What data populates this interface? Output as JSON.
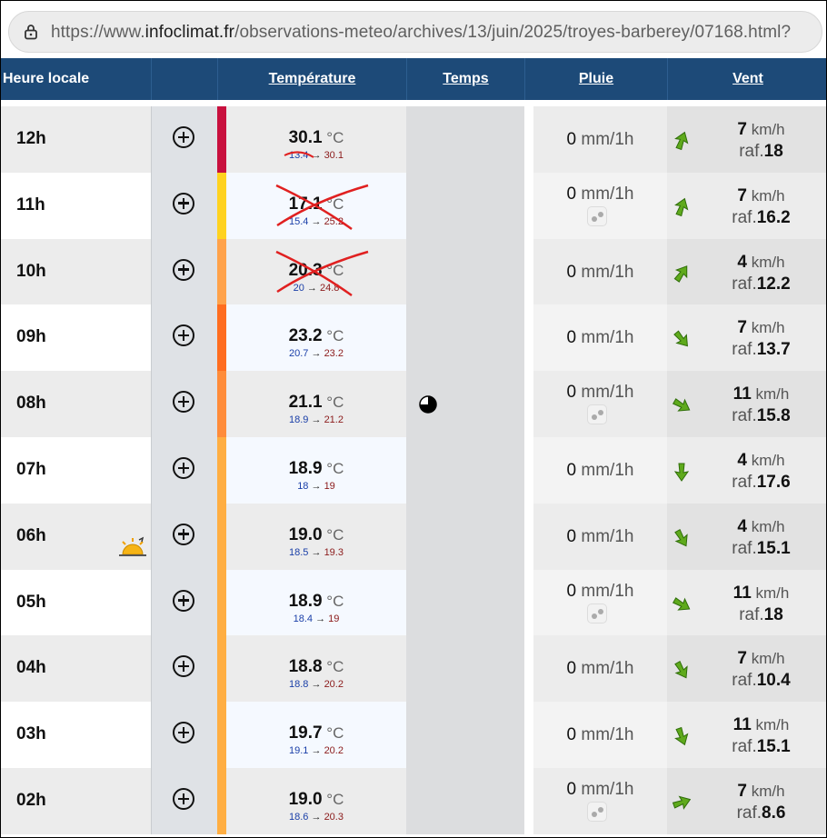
{
  "browser": {
    "url_prefix": "https://www.",
    "url_domain": "infoclimat.fr",
    "url_path": "/observations-meteo/archives/13/juin/2025/troyes-barberey/07168.html?"
  },
  "table_header": {
    "hour": "Heure locale",
    "temperature": "Température",
    "weather": "Temps",
    "rain": "Pluie",
    "wind": "Vent"
  },
  "units": {
    "temp": "°C",
    "rain": "mm/1h",
    "wind": "km/h",
    "gust_prefix": "raf."
  },
  "rows": [
    {
      "hour": "12h",
      "temp": "30.1",
      "tmin": "13.4",
      "tmax": "30.1",
      "rain": "0",
      "rain_icon": false,
      "wind": "7",
      "gust": "18",
      "bar_color": "#c8103e",
      "bg": "#ececec",
      "temp_bg": "#ececec",
      "rain_bg": "#ececec",
      "wind_bg": "#e2e2e2",
      "wind_dir_deg": 200,
      "crossed": "strike"
    },
    {
      "hour": "11h",
      "temp": "17.1",
      "tmin": "15.4",
      "tmax": "25.2",
      "rain": "0",
      "rain_icon": true,
      "wind": "7",
      "gust": "16.2",
      "bar_color": "#ffd21f",
      "bg": "#ffffff",
      "temp_bg": "#f5f9ff",
      "rain_bg": "#f3f3f3",
      "wind_bg": "#ececec",
      "wind_dir_deg": 200,
      "crossed": "x"
    },
    {
      "hour": "10h",
      "temp": "20.3",
      "tmin": "20",
      "tmax": "24.8",
      "rain": "0",
      "rain_icon": false,
      "wind": "4",
      "gust": "12.2",
      "bar_color": "#ffa24a",
      "bg": "#ececec",
      "temp_bg": "#ececec",
      "rain_bg": "#ececec",
      "wind_bg": "#e2e2e2",
      "wind_dir_deg": 215,
      "crossed": "x"
    },
    {
      "hour": "09h",
      "temp": "23.2",
      "tmin": "20.7",
      "tmax": "23.2",
      "rain": "0",
      "rain_icon": false,
      "wind": "7",
      "gust": "13.7",
      "bar_color": "#ff6d1f",
      "bg": "#ffffff",
      "temp_bg": "#f5f9ff",
      "rain_bg": "#f3f3f3",
      "wind_bg": "#ececec",
      "wind_dir_deg": 320,
      "crossed": ""
    },
    {
      "hour": "08h",
      "temp": "21.1",
      "tmin": "18.9",
      "tmax": "21.2",
      "rain": "0",
      "rain_icon": true,
      "wind": "11",
      "gust": "15.8",
      "bar_color": "#ff8c3a",
      "bg": "#ececec",
      "temp_bg": "#ececec",
      "rain_bg": "#ececec",
      "wind_bg": "#e2e2e2",
      "wind_dir_deg": 300,
      "crossed": "",
      "weather_icon": true
    },
    {
      "hour": "07h",
      "temp": "18.9",
      "tmin": "18",
      "tmax": "19",
      "rain": "0",
      "rain_icon": false,
      "wind": "4",
      "gust": "17.6",
      "bar_color": "#ffae42",
      "bg": "#ffffff",
      "temp_bg": "#f5f9ff",
      "rain_bg": "#f3f3f3",
      "wind_bg": "#ececec",
      "wind_dir_deg": 0,
      "crossed": ""
    },
    {
      "hour": "06h",
      "temp": "19.0",
      "tmin": "18.5",
      "tmax": "19.3",
      "rain": "0",
      "rain_icon": false,
      "wind": "4",
      "gust": "15.1",
      "bar_color": "#ffae42",
      "bg": "#ececec",
      "temp_bg": "#ececec",
      "rain_bg": "#ececec",
      "wind_bg": "#e2e2e2",
      "wind_dir_deg": 330,
      "crossed": "",
      "sunrise_icon": true
    },
    {
      "hour": "05h",
      "temp": "18.9",
      "tmin": "18.4",
      "tmax": "19",
      "rain": "0",
      "rain_icon": true,
      "wind": "11",
      "gust": "18",
      "bar_color": "#ffae42",
      "bg": "#ffffff",
      "temp_bg": "#f5f9ff",
      "rain_bg": "#f3f3f3",
      "wind_bg": "#ececec",
      "wind_dir_deg": 300,
      "crossed": ""
    },
    {
      "hour": "04h",
      "temp": "18.8",
      "tmin": "18.8",
      "tmax": "20.2",
      "rain": "0",
      "rain_icon": false,
      "wind": "7",
      "gust": "10.4",
      "bar_color": "#ffae42",
      "bg": "#ececec",
      "temp_bg": "#ececec",
      "rain_bg": "#ececec",
      "wind_bg": "#e2e2e2",
      "wind_dir_deg": 330,
      "crossed": ""
    },
    {
      "hour": "03h",
      "temp": "19.7",
      "tmin": "19.1",
      "tmax": "20.2",
      "rain": "0",
      "rain_icon": false,
      "wind": "11",
      "gust": "15.1",
      "bar_color": "#ffae42",
      "bg": "#ffffff",
      "temp_bg": "#f5f9ff",
      "rain_bg": "#f3f3f3",
      "wind_bg": "#ececec",
      "wind_dir_deg": 340,
      "crossed": ""
    },
    {
      "hour": "02h",
      "temp": "19.0",
      "tmin": "18.6",
      "tmax": "20.3",
      "rain": "0",
      "rain_icon": true,
      "wind": "7",
      "gust": "8.6",
      "bar_color": "#ffae42",
      "bg": "#ececec",
      "temp_bg": "#ececec",
      "rain_bg": "#ececec",
      "wind_bg": "#e2e2e2",
      "wind_dir_deg": 250,
      "crossed": ""
    }
  ]
}
